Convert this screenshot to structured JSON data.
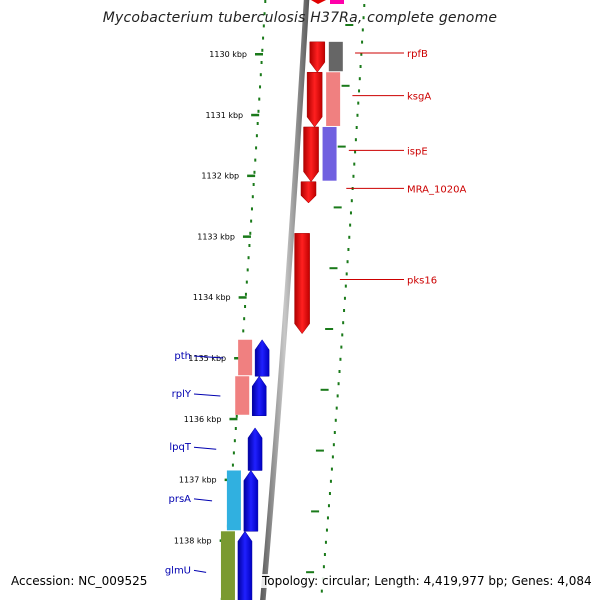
{
  "title": "Mycobacterium tuberculosis H37Ra, complete genome",
  "footer": {
    "accession": "Accession: NC_009525",
    "summary": "Topology: circular; Length: 4,419,977 bp; Genes: 4,084"
  },
  "colors": {
    "ruler_green": "#1a7a1a",
    "backbone_gray": "#8a8a8a",
    "forward_label": "#cc0000",
    "reverse_label": "#0000b0"
  },
  "ruler": {
    "unit": "kbp",
    "ticks": [
      {
        "label": "1130 kbp",
        "kbp": 1130
      },
      {
        "label": "1131 kbp",
        "kbp": 1131
      },
      {
        "label": "1132 kbp",
        "kbp": 1132
      },
      {
        "label": "1133 kbp",
        "kbp": 1133
      },
      {
        "label": "1134 kbp",
        "kbp": 1134
      },
      {
        "label": "1135 kbp",
        "kbp": 1135
      },
      {
        "label": "1136 kbp",
        "kbp": 1136
      },
      {
        "label": "1137 kbp",
        "kbp": 1137
      },
      {
        "label": "1138 kbp",
        "kbp": 1138
      }
    ]
  },
  "genes_forward_strand": [
    {
      "name": "rpfB",
      "start_kbp": 1129.8,
      "end_kbp": 1130.3,
      "color": "#ff0000",
      "cog_color": "#666666"
    },
    {
      "name": "ksgA",
      "start_kbp": 1130.3,
      "end_kbp": 1131.2,
      "color": "#ff0000",
      "cog_color": "#f08080"
    },
    {
      "name": "ispE",
      "start_kbp": 1131.2,
      "end_kbp": 1132.1,
      "color": "#ff0000",
      "cog_color": "#7060e0"
    },
    {
      "name": "MRA_1020A",
      "start_kbp": 1132.1,
      "end_kbp": 1132.45,
      "color": "#ff0000",
      "cog_color": ""
    },
    {
      "name": "pks16",
      "start_kbp": 1132.95,
      "end_kbp": 1134.6,
      "color": "#ff0000",
      "cog_color": ""
    }
  ],
  "genes_reverse_strand": [
    {
      "name": "pth",
      "start_kbp": 1134.7,
      "end_kbp": 1135.3,
      "color": "#0000ff",
      "cog_color": "#f08080"
    },
    {
      "name": "rplY",
      "start_kbp": 1135.3,
      "end_kbp": 1135.95,
      "color": "#0000ff",
      "cog_color": "#f08080"
    },
    {
      "name": "lpqT",
      "start_kbp": 1136.15,
      "end_kbp": 1136.85,
      "color": "#0000ff",
      "cog_color": ""
    },
    {
      "name": "prsA",
      "start_kbp": 1136.85,
      "end_kbp": 1137.85,
      "color": "#0000ff",
      "cog_color": "#30b0e0"
    },
    {
      "name": "glmU",
      "start_kbp": 1137.85,
      "end_kbp": 1139.2,
      "color": "#0000ff",
      "cog_color": "#7a9a30"
    }
  ]
}
